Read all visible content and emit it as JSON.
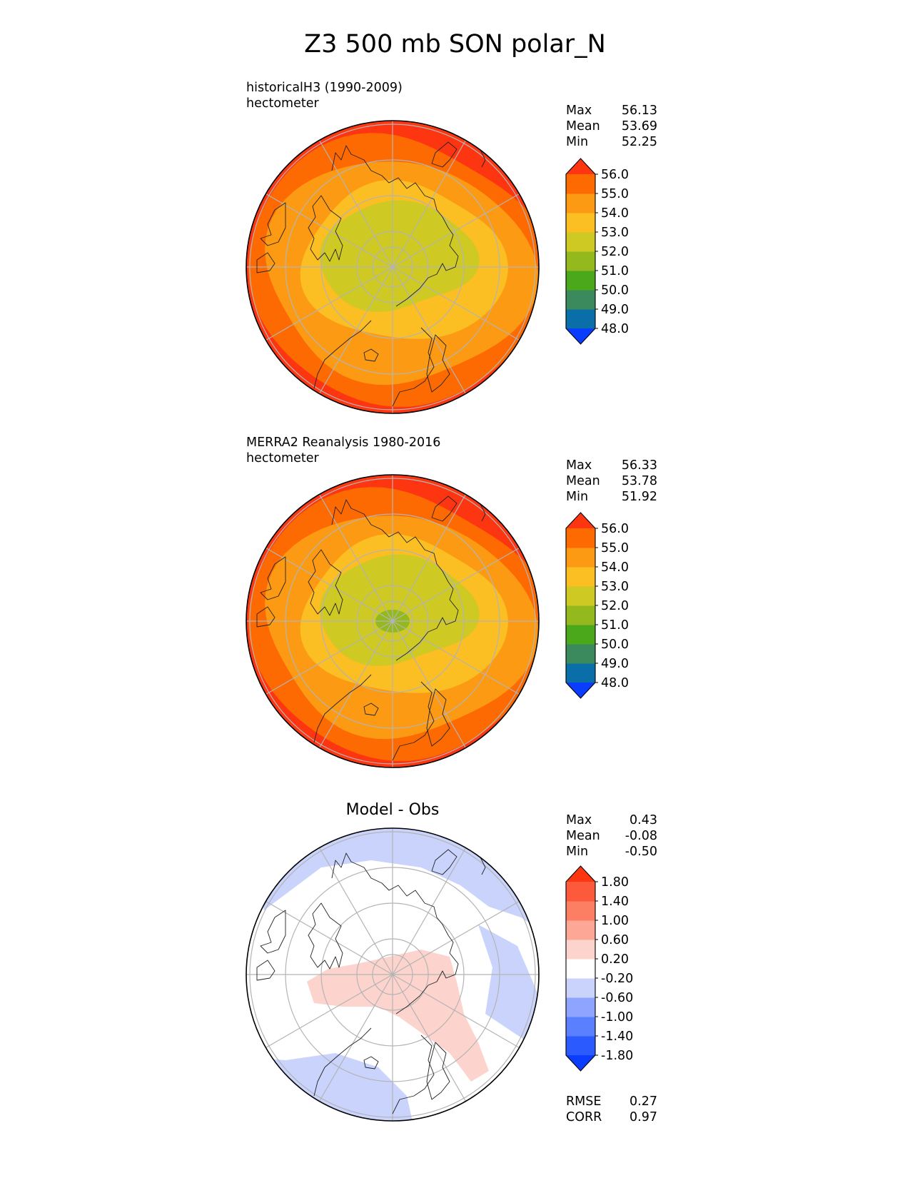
{
  "title": "Z3 500 mb SON polar_N",
  "panels": [
    {
      "label_line1": "historicalH3 (1990-2009)",
      "label_line2": "hectometer",
      "stats": [
        {
          "label": "Max",
          "value": "56.13"
        },
        {
          "label": "Mean",
          "value": "53.69"
        },
        {
          "label": "Min",
          "value": "52.25"
        }
      ]
    },
    {
      "label_line1": "MERRA2 Reanalysis 1980-2016",
      "label_line2": "hectometer",
      "stats": [
        {
          "label": "Max",
          "value": "56.33"
        },
        {
          "label": "Mean",
          "value": "53.78"
        },
        {
          "label": "Min",
          "value": "51.92"
        }
      ]
    },
    {
      "title": "Model - Obs",
      "stats": [
        {
          "label": "Max",
          "value": "0.43"
        },
        {
          "label": "Mean",
          "value": "-0.08"
        },
        {
          "label": "Min",
          "value": "-0.50"
        }
      ],
      "extra_stats": [
        {
          "label": "RMSE",
          "value": "0.27"
        },
        {
          "label": "CORR",
          "value": "0.97"
        }
      ]
    }
  ],
  "chart_data": [
    {
      "type": "heatmap",
      "projection": "north polar stereographic",
      "title": "historicalH3 (1990-2009)",
      "units": "hectometer",
      "levels": [
        48.0,
        49.0,
        50.0,
        51.0,
        52.0,
        53.0,
        54.0,
        55.0,
        56.0
      ],
      "colorbar_colors": [
        "#0b3dff",
        "#0a6ea8",
        "#3a8a5e",
        "#4ba81a",
        "#93b91f",
        "#cec923",
        "#fbbe23",
        "#fd9a13",
        "#fd6a02",
        "#fd3510"
      ],
      "contours": [
        {
          "level": 53.0,
          "region": "central Arctic"
        },
        {
          "level": 54.0,
          "region": "mid latitudes"
        },
        {
          "level": 55.0,
          "region": "outer ring"
        },
        {
          "level": 56.0,
          "region": "edge"
        }
      ]
    },
    {
      "type": "heatmap",
      "projection": "north polar stereographic",
      "title": "MERRA2 Reanalysis 1980-2016",
      "units": "hectometer",
      "levels": [
        48.0,
        49.0,
        50.0,
        51.0,
        52.0,
        53.0,
        54.0,
        55.0,
        56.0
      ],
      "colorbar_colors": [
        "#0b3dff",
        "#0a6ea8",
        "#3a8a5e",
        "#4ba81a",
        "#93b91f",
        "#cec923",
        "#fbbe23",
        "#fd9a13",
        "#fd6a02",
        "#fd3510"
      ],
      "contours": [
        {
          "level": 52.0,
          "region": "pole"
        },
        {
          "level": 53.0,
          "region": "central Arctic"
        },
        {
          "level": 54.0,
          "region": "mid latitudes"
        },
        {
          "level": 55.0,
          "region": "outer ring"
        },
        {
          "level": 56.0,
          "region": "edge"
        }
      ]
    },
    {
      "type": "heatmap",
      "projection": "north polar stereographic",
      "title": "Model - Obs",
      "levels": [
        -1.8,
        -1.4,
        -1.0,
        -0.6,
        -0.2,
        0.2,
        0.6,
        1.0,
        1.4,
        1.8
      ],
      "colorbar_colors": [
        "#0b3dff",
        "#2b5bff",
        "#5a7fff",
        "#8ea4ff",
        "#c9d3fc",
        "#ffffff",
        "#fdd4cd",
        "#fda897",
        "#fd7f63",
        "#fd5a3c",
        "#fd3510"
      ],
      "regions": [
        {
          "sign": "positive",
          "range": [
            0.2,
            0.6
          ],
          "location": "pole and Pacific sector"
        },
        {
          "sign": "negative",
          "range": [
            -0.6,
            -0.2
          ],
          "location": "Atlantic and mid-latitude bands"
        }
      ]
    }
  ]
}
